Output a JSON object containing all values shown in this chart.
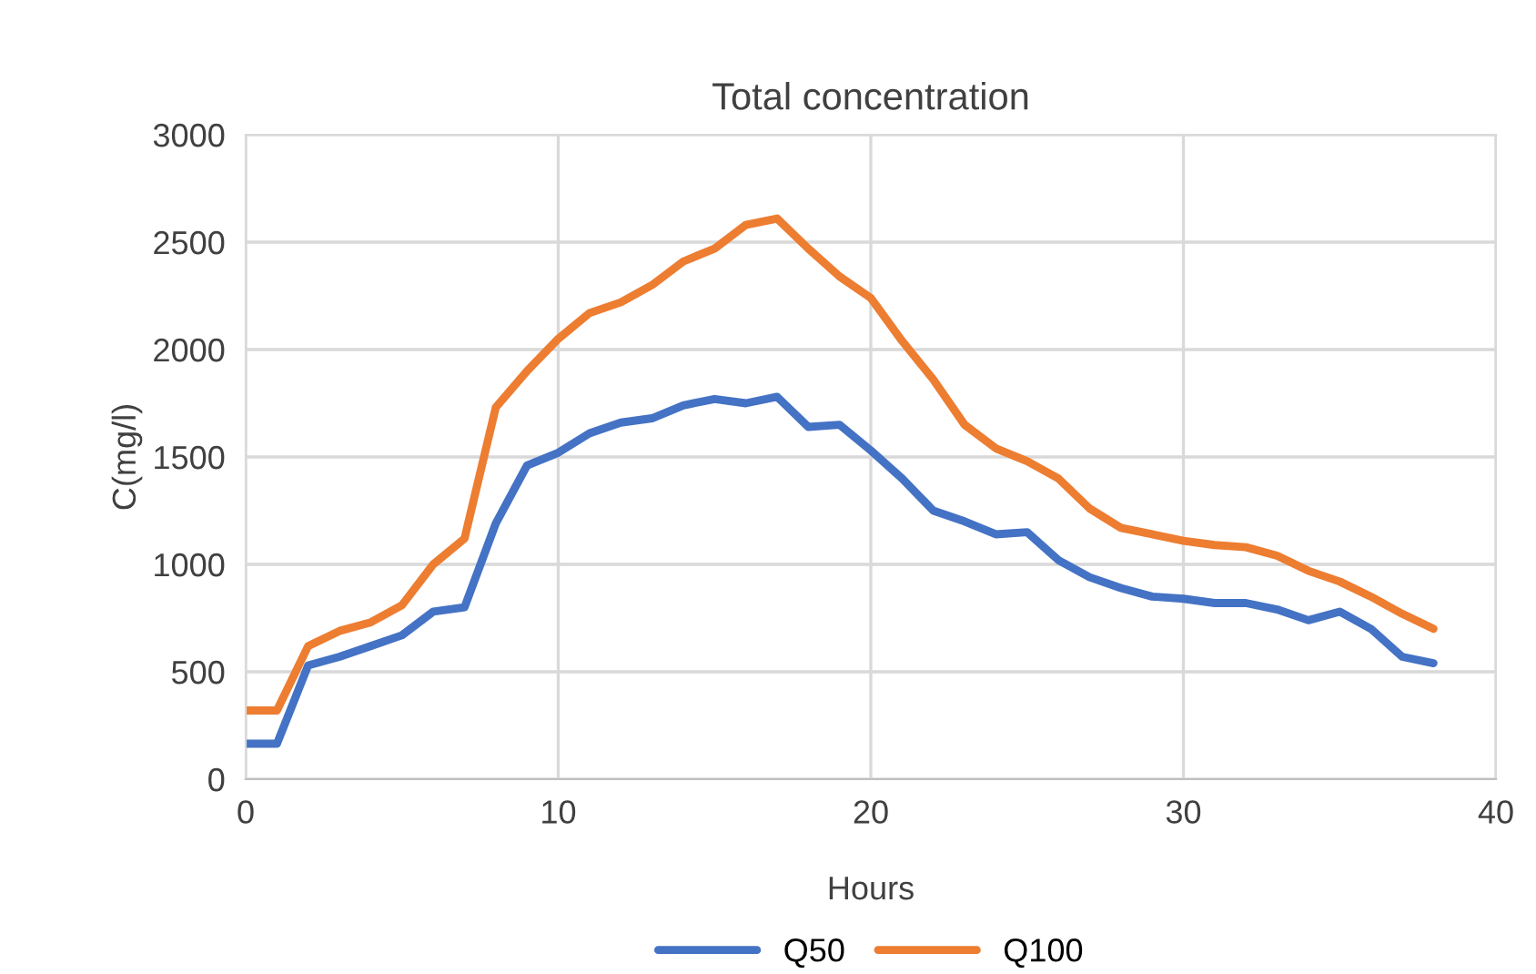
{
  "chart_data": {
    "type": "line",
    "title": "Total concentration",
    "xlabel": "Hours",
    "ylabel": "C(mg/l)",
    "x": [
      0,
      1,
      2,
      3,
      4,
      5,
      6,
      7,
      8,
      9,
      10,
      11,
      12,
      13,
      14,
      15,
      16,
      17,
      18,
      19,
      20,
      21,
      22,
      23,
      24,
      25,
      26,
      27,
      28,
      29,
      30,
      31,
      32,
      33,
      34,
      35,
      36,
      37,
      38
    ],
    "series": [
      {
        "name": "Q50",
        "color": "#4472c4",
        "values": [
          165,
          165,
          530,
          570,
          620,
          670,
          780,
          800,
          1190,
          1460,
          1520,
          1610,
          1660,
          1680,
          1740,
          1770,
          1750,
          1780,
          1640,
          1650,
          1530,
          1400,
          1250,
          1200,
          1140,
          1150,
          1020,
          940,
          890,
          850,
          840,
          820,
          820,
          790,
          740,
          780,
          700,
          570,
          540
        ]
      },
      {
        "name": "Q100",
        "color": "#ed7d31",
        "values": [
          320,
          320,
          620,
          690,
          730,
          810,
          1000,
          1120,
          1730,
          1900,
          2050,
          2170,
          2220,
          2300,
          2410,
          2470,
          2580,
          2610,
          2470,
          2340,
          2240,
          2040,
          1860,
          1650,
          1540,
          1480,
          1400,
          1260,
          1170,
          1140,
          1110,
          1090,
          1080,
          1040,
          970,
          920,
          850,
          770,
          700
        ]
      }
    ],
    "xlim": [
      0,
      40
    ],
    "xticks": [
      0,
      10,
      20,
      30,
      40
    ],
    "ylim": [
      0,
      3000
    ],
    "yticks": [
      0,
      500,
      1000,
      1500,
      2000,
      2500,
      3000
    ],
    "grid": true,
    "legend": "bottom",
    "marker": "none",
    "line_style": "solid"
  }
}
